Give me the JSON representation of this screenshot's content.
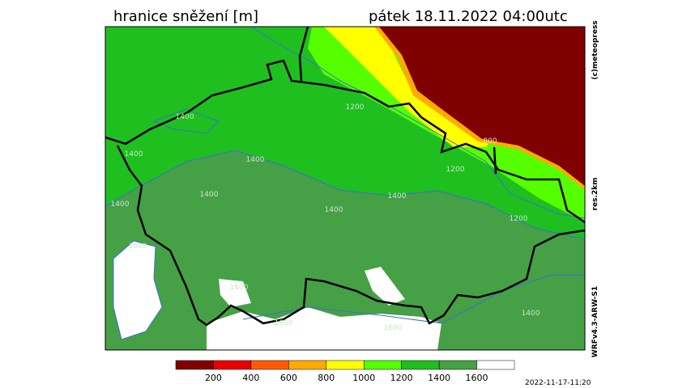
{
  "header": {
    "title": "hranice sněžení [m]",
    "valid_time": "pátek 18.11.2022 04:00utc"
  },
  "side_labels": {
    "copyright": "(c)meteopress",
    "resolution": "res.2km",
    "model": "WRFv4.3-ARW-S1"
  },
  "map": {
    "contour_labels": [
      1400,
      1400,
      1400,
      1400,
      1400,
      1400,
      1400,
      1200,
      1200,
      1200,
      1600,
      1600,
      1600,
      1600,
      1400,
      800
    ]
  },
  "legend": {
    "colors": [
      "#800000",
      "#e60000",
      "#ff5a00",
      "#ffaa00",
      "#ffff00",
      "#55ff00",
      "#1fbf1f",
      "#46a046",
      "#ffffff"
    ],
    "labels": [
      200,
      400,
      600,
      800,
      1000,
      1200,
      1400,
      1600
    ]
  },
  "footer": {
    "run_time": "2022-11-17-11:20"
  }
}
